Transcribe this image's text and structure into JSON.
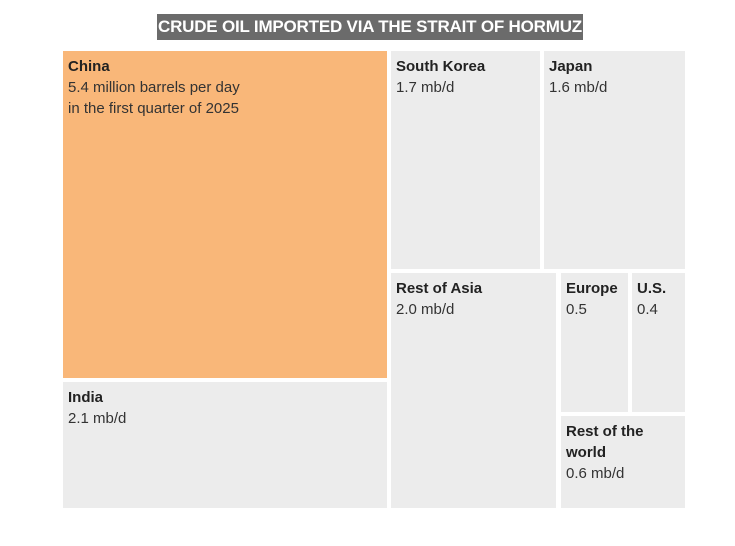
{
  "chart_data": {
    "type": "treemap",
    "title": "CRUDE OIL IMPORTED VIA THE STRAIT OF HORMUZ",
    "unit": "mb/d",
    "highlight_color": "#f9b779",
    "tile_color": "#ececec",
    "items": [
      {
        "name": "China",
        "label": "5.4 million barrels per day",
        "label2": "in the first quarter of 2025",
        "value": 5.4,
        "highlight": true
      },
      {
        "name": "India",
        "label": "2.1 mb/d",
        "value": 2.1
      },
      {
        "name": "South Korea",
        "label": "1.7 mb/d",
        "value": 1.7
      },
      {
        "name": "Japan",
        "label": "1.6 mb/d",
        "value": 1.6
      },
      {
        "name": "Rest of Asia",
        "label": "2.0 mb/d",
        "value": 2.0
      },
      {
        "name": "Europe",
        "label": "0.5",
        "value": 0.5
      },
      {
        "name": "U.S.",
        "label": "0.4",
        "value": 0.4
      },
      {
        "name": "Rest of the world",
        "label": "0.6 mb/d",
        "value": 0.6
      }
    ]
  }
}
